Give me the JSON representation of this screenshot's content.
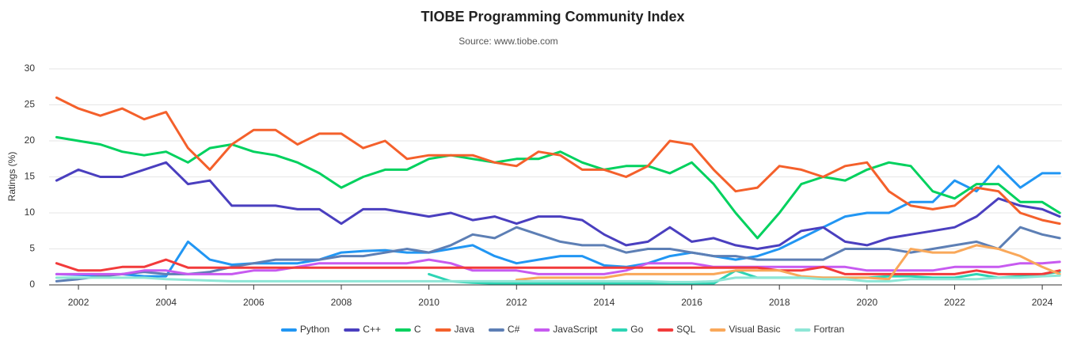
{
  "chart_data": {
    "type": "line",
    "title": "TIOBE Programming Community Index",
    "subtitle": "Source: www.tiobe.com",
    "y_label": "Ratings (%)",
    "x": [
      2001.5,
      2002,
      2002.5,
      2003,
      2003.5,
      2004,
      2004.5,
      2005,
      2005.5,
      2006,
      2006.5,
      2007,
      2007.5,
      2008,
      2008.5,
      2009,
      2009.5,
      2010,
      2010.5,
      2011,
      2011.5,
      2012,
      2012.5,
      2013,
      2013.5,
      2014,
      2014.5,
      2015,
      2015.5,
      2016,
      2016.5,
      2017,
      2017.5,
      2018,
      2018.5,
      2019,
      2019.5,
      2020,
      2020.5,
      2021,
      2021.5,
      2022,
      2022.5,
      2023,
      2023.5,
      2024,
      2024.4
    ],
    "xlim": [
      2001.33,
      2024.45
    ],
    "xticks": [
      2002,
      2004,
      2006,
      2008,
      2010,
      2012,
      2014,
      2016,
      2018,
      2020,
      2022,
      2024
    ],
    "ylim": [
      0,
      30
    ],
    "yticks": [
      0,
      5,
      10,
      15,
      20,
      25,
      30
    ],
    "grid": true,
    "legend": "bottom",
    "series": [
      {
        "name": "Python",
        "color": "#2196f3",
        "values": [
          1.5,
          1.4,
          1.3,
          1.5,
          1.2,
          1.2,
          6,
          3.5,
          2.8,
          3,
          3,
          3,
          3.5,
          4.5,
          4.7,
          4.8,
          4.5,
          4.5,
          5,
          5.5,
          4,
          3,
          3.5,
          4,
          4,
          2.7,
          2.5,
          3,
          4,
          4.5,
          4,
          3.5,
          4,
          5,
          6.5,
          8,
          9.5,
          10,
          10,
          11.5,
          11.5,
          14.5,
          13,
          16.5,
          13.5,
          15.5,
          15.5
        ]
      },
      {
        "name": "C++",
        "color": "#4a3fbf",
        "values": [
          14.5,
          16,
          15,
          15,
          16,
          17,
          14,
          14.5,
          11,
          11,
          11,
          10.5,
          10.5,
          8.5,
          10.5,
          10.5,
          10,
          9.5,
          10,
          9,
          9.5,
          8.5,
          9.5,
          9.5,
          9,
          7,
          5.5,
          6,
          8,
          6,
          6.5,
          5.5,
          5,
          5.5,
          7.5,
          8,
          6,
          5.5,
          6.5,
          7,
          7.5,
          8,
          9.5,
          12,
          11,
          10.5,
          9.5
        ]
      },
      {
        "name": "C",
        "color": "#00d15e",
        "values": [
          20.5,
          20,
          19.5,
          18.5,
          18,
          18.5,
          17,
          19,
          19.5,
          18.5,
          18,
          17,
          15.5,
          13.5,
          15,
          16,
          16,
          17.5,
          18,
          17.5,
          17,
          17.5,
          17.5,
          18.5,
          17,
          16,
          16.5,
          16.5,
          15.5,
          17,
          14,
          10,
          6.5,
          10,
          14,
          15,
          14.5,
          16,
          17,
          16.5,
          13,
          12,
          14,
          14,
          11.5,
          11.5,
          10
        ]
      },
      {
        "name": "Java",
        "color": "#f4602b",
        "values": [
          26,
          24.5,
          23.5,
          24.5,
          23,
          24,
          19,
          16,
          19.5,
          21.5,
          21.5,
          19.5,
          21,
          21,
          19,
          20,
          17.5,
          18,
          18,
          18,
          17,
          16.5,
          18.5,
          18,
          16,
          16,
          15,
          16.5,
          20,
          19.5,
          16,
          13,
          13.5,
          16.5,
          16,
          15,
          16.5,
          17,
          13,
          11,
          10.5,
          11,
          13.5,
          13,
          10,
          9,
          8.5
        ]
      },
      {
        "name": "C#",
        "color": "#5d7fb5",
        "values": [
          0.5,
          0.8,
          1.2,
          1.5,
          1.8,
          1.5,
          1.5,
          1.8,
          2.5,
          3,
          3.5,
          3.5,
          3.5,
          4,
          4,
          4.5,
          5,
          4.5,
          5.5,
          7,
          6.5,
          8,
          7,
          6,
          5.5,
          5.5,
          4.5,
          5,
          5,
          4.5,
          4,
          4,
          3.5,
          3.5,
          3.5,
          3.5,
          5,
          5,
          5,
          4.5,
          5,
          5.5,
          6,
          5,
          8,
          7,
          6.5
        ]
      },
      {
        "name": "JavaScript",
        "color": "#c75af0",
        "values": [
          1.5,
          1.5,
          1.5,
          1.5,
          2,
          2,
          1.5,
          1.5,
          1.5,
          2,
          2,
          2.5,
          3,
          3,
          3,
          3,
          3,
          3.5,
          3,
          2,
          2,
          2,
          1.5,
          1.5,
          1.5,
          1.5,
          2,
          3,
          3,
          3,
          2.5,
          2.5,
          2.5,
          2.5,
          2.5,
          2.5,
          2.5,
          2,
          2,
          2,
          2,
          2.5,
          2.5,
          2.5,
          3,
          3,
          3.2
        ]
      },
      {
        "name": "Go",
        "color": "#2dd4b4",
        "values": [
          null,
          null,
          null,
          null,
          null,
          null,
          null,
          null,
          null,
          null,
          null,
          null,
          null,
          null,
          null,
          null,
          null,
          1.5,
          0.5,
          0.3,
          0.2,
          0.2,
          0.2,
          0.2,
          0.2,
          0.2,
          0.2,
          0.2,
          0.2,
          0.2,
          0.2,
          2,
          1,
          1,
          1,
          1,
          1,
          1,
          1.2,
          1.2,
          1,
          1,
          1.5,
          1,
          1.2,
          1.5,
          1.8
        ]
      },
      {
        "name": "SQL",
        "color": "#f23b3b",
        "values": [
          3,
          2,
          2,
          2.5,
          2.5,
          3.5,
          2.4,
          2.4,
          2.4,
          2.4,
          2.4,
          2.4,
          2.4,
          2.4,
          2.4,
          2.4,
          2.4,
          2.4,
          2.4,
          2.4,
          2.4,
          2.4,
          2.4,
          2.4,
          2.4,
          2.4,
          2.4,
          2.4,
          2.4,
          2.4,
          2.4,
          2.4,
          2.4,
          2,
          2,
          2.5,
          1.5,
          1.5,
          1.5,
          1.5,
          1.5,
          1.5,
          2,
          1.5,
          1.5,
          1.5,
          2
        ]
      },
      {
        "name": "Visual Basic",
        "color": "#f9a85a",
        "values": [
          null,
          null,
          null,
          null,
          null,
          null,
          null,
          null,
          null,
          null,
          null,
          null,
          null,
          null,
          null,
          null,
          null,
          null,
          null,
          null,
          null,
          0.7,
          1,
          1,
          1,
          1,
          1.5,
          1.5,
          1.5,
          1.5,
          1.5,
          2,
          2,
          2,
          1.2,
          1,
          1,
          1,
          0.8,
          5,
          4.5,
          4.5,
          5.5,
          5,
          4,
          2.5,
          1.5
        ]
      },
      {
        "name": "Fortran",
        "color": "#8ee6d6",
        "values": [
          1,
          1,
          1,
          1,
          1,
          0.8,
          0.7,
          0.6,
          0.5,
          0.5,
          0.5,
          0.5,
          0.5,
          0.5,
          0.5,
          0.5,
          0.5,
          0.5,
          0.5,
          0.5,
          0.5,
          0.5,
          0.5,
          0.5,
          0.5,
          0.5,
          0.5,
          0.5,
          0.4,
          0.4,
          0.5,
          1,
          1,
          1,
          1,
          0.8,
          0.8,
          0.5,
          0.5,
          0.8,
          0.8,
          0.8,
          0.8,
          1,
          1,
          1.2,
          1.3
        ]
      }
    ]
  }
}
